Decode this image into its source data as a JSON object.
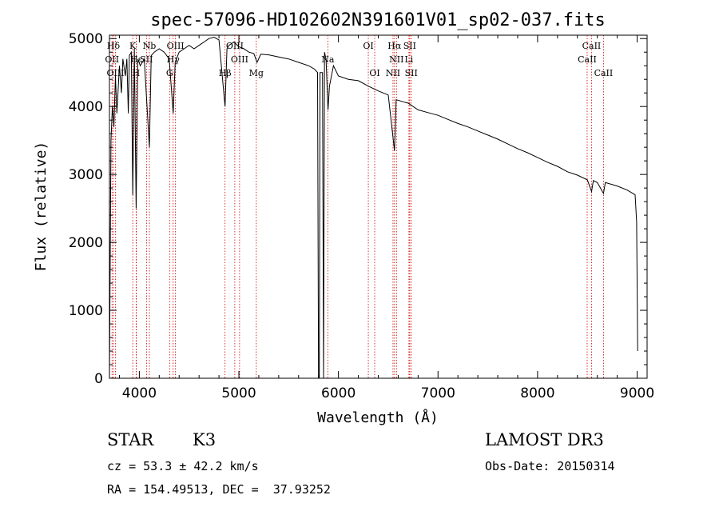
{
  "chart_data": {
    "type": "line",
    "title": "spec-57096-HD102602N391601V01_sp02-037.fits",
    "xlabel": "Wavelength (Å)",
    "ylabel": "Flux (relative)",
    "xlim": [
      3700,
      9100
    ],
    "ylim": [
      0,
      5050
    ],
    "xticks": [
      4000,
      5000,
      6000,
      7000,
      8000,
      9000
    ],
    "yticks": [
      0,
      1000,
      2000,
      3000,
      4000,
      5000
    ],
    "series": [
      {
        "name": "spectrum",
        "points": [
          [
            3700,
            0
          ],
          [
            3715,
            3500
          ],
          [
            3730,
            4000
          ],
          [
            3745,
            3700
          ],
          [
            3760,
            4450
          ],
          [
            3775,
            3900
          ],
          [
            3800,
            4600
          ],
          [
            3820,
            4200
          ],
          [
            3835,
            4700
          ],
          [
            3860,
            4450
          ],
          [
            3875,
            4700
          ],
          [
            3889,
            3900
          ],
          [
            3900,
            4750
          ],
          [
            3920,
            4800
          ],
          [
            3934,
            2700
          ],
          [
            3950,
            4850
          ],
          [
            3968,
            2500
          ],
          [
            3985,
            4700
          ],
          [
            4010,
            4600
          ],
          [
            4050,
            4700
          ],
          [
            4101,
            3400
          ],
          [
            4120,
            4750
          ],
          [
            4150,
            4800
          ],
          [
            4200,
            4850
          ],
          [
            4250,
            4800
          ],
          [
            4300,
            4700
          ],
          [
            4340,
            3900
          ],
          [
            4360,
            4650
          ],
          [
            4400,
            4800
          ],
          [
            4450,
            4850
          ],
          [
            4500,
            4900
          ],
          [
            4550,
            4850
          ],
          [
            4600,
            4900
          ],
          [
            4650,
            4950
          ],
          [
            4700,
            5000
          ],
          [
            4750,
            5020
          ],
          [
            4800,
            4980
          ],
          [
            4861,
            4000
          ],
          [
            4880,
            4850
          ],
          [
            4900,
            4900
          ],
          [
            4950,
            4950
          ],
          [
            5000,
            4880
          ],
          [
            5050,
            4850
          ],
          [
            5100,
            4800
          ],
          [
            5150,
            4780
          ],
          [
            5183,
            4650
          ],
          [
            5220,
            4770
          ],
          [
            5300,
            4760
          ],
          [
            5400,
            4730
          ],
          [
            5500,
            4700
          ],
          [
            5600,
            4650
          ],
          [
            5700,
            4600
          ],
          [
            5760,
            4550
          ],
          [
            5790,
            4500
          ],
          [
            5800,
            0
          ],
          [
            5808,
            0
          ],
          [
            5815,
            4500
          ],
          [
            5840,
            4500
          ],
          [
            5850,
            0
          ],
          [
            5860,
            4800
          ],
          [
            5875,
            4700
          ],
          [
            5895,
            3950
          ],
          [
            5910,
            4300
          ],
          [
            5950,
            4600
          ],
          [
            6000,
            4450
          ],
          [
            6100,
            4400
          ],
          [
            6200,
            4380
          ],
          [
            6300,
            4300
          ],
          [
            6400,
            4230
          ],
          [
            6500,
            4170
          ],
          [
            6563,
            3350
          ],
          [
            6580,
            4100
          ],
          [
            6650,
            4070
          ],
          [
            6700,
            4050
          ],
          [
            6800,
            3950
          ],
          [
            6900,
            3910
          ],
          [
            7000,
            3870
          ],
          [
            7100,
            3810
          ],
          [
            7200,
            3750
          ],
          [
            7300,
            3700
          ],
          [
            7400,
            3640
          ],
          [
            7500,
            3580
          ],
          [
            7600,
            3520
          ],
          [
            7700,
            3450
          ],
          [
            7800,
            3380
          ],
          [
            7900,
            3320
          ],
          [
            8000,
            3250
          ],
          [
            8100,
            3180
          ],
          [
            8200,
            3120
          ],
          [
            8300,
            3040
          ],
          [
            8400,
            2990
          ],
          [
            8500,
            2920
          ],
          [
            8542,
            2750
          ],
          [
            8560,
            2910
          ],
          [
            8600,
            2880
          ],
          [
            8662,
            2720
          ],
          [
            8680,
            2880
          ],
          [
            8800,
            2830
          ],
          [
            8900,
            2770
          ],
          [
            8980,
            2700
          ],
          [
            8995,
            2300
          ],
          [
            9005,
            400
          ]
        ]
      }
    ],
    "line_markers": [
      {
        "label": "Hδ",
        "x": 3740,
        "row": 1
      },
      {
        "label": "OII",
        "x": 3726,
        "row": 2
      },
      {
        "label": "OIII",
        "x": 3760,
        "row": 3
      },
      {
        "label": "K",
        "x": 3934,
        "row": 1
      },
      {
        "label": "H",
        "x": 3968,
        "row": 3
      },
      {
        "label": "Hε",
        "x": 3970,
        "row": 2
      },
      {
        "label": "SII",
        "x": 4072,
        "row": 2
      },
      {
        "label": "Nb",
        "x": 4101,
        "row": 1
      },
      {
        "label": "OIII",
        "x": 4363,
        "row": 1
      },
      {
        "label": "Hγ",
        "x": 4340,
        "row": 2
      },
      {
        "label": "G",
        "x": 4304,
        "row": 3
      },
      {
        "label": "OIII",
        "x": 4959,
        "row": 1
      },
      {
        "label": "OIII",
        "x": 5007,
        "row": 2
      },
      {
        "label": "Hβ",
        "x": 4861,
        "row": 3
      },
      {
        "label": "Mg",
        "x": 5175,
        "row": 3
      },
      {
        "label": "Na",
        "x": 5893,
        "row": 2
      },
      {
        "label": "OI",
        "x": 6300,
        "row": 1
      },
      {
        "label": "OI",
        "x": 6364,
        "row": 3
      },
      {
        "label": "Hα",
        "x": 6563,
        "row": 1
      },
      {
        "label": "NII",
        "x": 6583,
        "row": 2
      },
      {
        "label": "NII",
        "x": 6548,
        "row": 3
      },
      {
        "label": "SII",
        "x": 6716,
        "row": 1
      },
      {
        "label": "Li",
        "x": 6708,
        "row": 2
      },
      {
        "label": "SII",
        "x": 6731,
        "row": 3
      },
      {
        "label": "CaII",
        "x": 8542,
        "row": 1
      },
      {
        "label": "CaII",
        "x": 8498,
        "row": 2
      },
      {
        "label": "CaII",
        "x": 8662,
        "row": 3
      }
    ],
    "colors": {
      "spectrum": "#000000",
      "marker_line": "#cc0000"
    }
  },
  "info": {
    "class_label": "STAR",
    "subclass": "K3",
    "survey": "LAMOST DR3",
    "redshift_line": "cz = 53.3 ± 42.2 km/s",
    "obs_date": "Obs-Date: 20150314",
    "coords": "RA = 154.49513, DEC =  37.93252"
  }
}
